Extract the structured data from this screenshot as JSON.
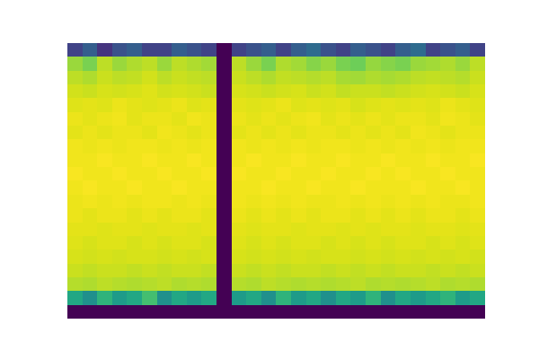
{
  "chart_data": {
    "type": "heatmap",
    "color": "viridis",
    "tick_labels": false,
    "value_range": [
      0,
      1
    ],
    "cells": [
      [
        0.2,
        0.3,
        0.15,
        0.25,
        0.3,
        0.2,
        0.2,
        0.3,
        0.25,
        0.2,
        0,
        0.2,
        0.25,
        0.3,
        0.2,
        0.3,
        0.35,
        0.25,
        0.2,
        0.3,
        0.25,
        0.2,
        0.3,
        0.35,
        0.2,
        0.25,
        0.3,
        0.2
      ],
      [
        0.85,
        0.8,
        0.9,
        0.85,
        0.88,
        0.9,
        0.85,
        0.9,
        0.88,
        0.86,
        0,
        0.9,
        0.85,
        0.8,
        0.88,
        0.86,
        0.82,
        0.85,
        0.8,
        0.78,
        0.84,
        0.82,
        0.8,
        0.85,
        0.86,
        0.88,
        0.85,
        0.9
      ],
      [
        0.9,
        0.88,
        0.92,
        0.9,
        0.91,
        0.93,
        0.9,
        0.92,
        0.91,
        0.9,
        0,
        0.92,
        0.9,
        0.88,
        0.91,
        0.9,
        0.89,
        0.9,
        0.87,
        0.86,
        0.88,
        0.87,
        0.88,
        0.9,
        0.91,
        0.9,
        0.89,
        0.92
      ],
      [
        0.93,
        0.92,
        0.94,
        0.93,
        0.94,
        0.95,
        0.93,
        0.94,
        0.93,
        0.92,
        0,
        0.94,
        0.93,
        0.92,
        0.93,
        0.94,
        0.92,
        0.93,
        0.91,
        0.92,
        0.92,
        0.91,
        0.92,
        0.93,
        0.94,
        0.93,
        0.92,
        0.94
      ],
      [
        0.95,
        0.96,
        0.95,
        0.97,
        0.96,
        0.95,
        0.96,
        0.97,
        0.95,
        0.96,
        0,
        0.96,
        0.95,
        0.96,
        0.97,
        0.95,
        0.96,
        0.95,
        0.96,
        0.94,
        0.95,
        0.96,
        0.95,
        0.96,
        0.95,
        0.97,
        0.96,
        0.95
      ],
      [
        0.97,
        0.96,
        0.97,
        0.98,
        0.96,
        0.97,
        0.97,
        0.96,
        0.98,
        0.97,
        0,
        0.97,
        0.96,
        0.97,
        0.96,
        0.97,
        0.98,
        0.96,
        0.97,
        0.96,
        0.97,
        0.96,
        0.97,
        0.97,
        0.96,
        0.98,
        0.97,
        0.96
      ],
      [
        0.96,
        0.97,
        0.96,
        0.97,
        0.97,
        0.96,
        0.98,
        0.97,
        0.96,
        0.97,
        0,
        0.96,
        0.97,
        0.96,
        0.97,
        0.96,
        0.97,
        0.97,
        0.96,
        0.97,
        0.96,
        0.97,
        0.96,
        0.98,
        0.97,
        0.96,
        0.97,
        0.97
      ],
      [
        0.98,
        0.97,
        0.98,
        0.97,
        0.98,
        0.98,
        0.97,
        0.98,
        0.97,
        0.98,
        0,
        0.98,
        0.97,
        0.98,
        0.97,
        0.98,
        0.97,
        0.98,
        0.98,
        0.97,
        0.98,
        0.97,
        0.98,
        0.97,
        0.98,
        0.97,
        0.98,
        0.98
      ],
      [
        0.98,
        0.98,
        0.99,
        0.98,
        0.98,
        0.99,
        0.98,
        0.98,
        0.99,
        0.98,
        0,
        0.98,
        0.99,
        0.98,
        0.98,
        0.99,
        0.98,
        0.98,
        0.99,
        0.98,
        0.98,
        0.99,
        0.98,
        0.98,
        0.99,
        0.98,
        0.98,
        0.99
      ],
      [
        0.99,
        0.98,
        0.98,
        0.99,
        0.98,
        0.98,
        0.99,
        0.98,
        0.98,
        0.99,
        0,
        0.99,
        0.98,
        0.98,
        0.99,
        0.98,
        0.98,
        0.99,
        0.98,
        0.98,
        0.99,
        0.98,
        0.99,
        0.98,
        0.98,
        0.99,
        0.98,
        0.98
      ],
      [
        0.98,
        0.99,
        0.98,
        0.98,
        0.99,
        0.98,
        0.98,
        0.99,
        0.98,
        0.98,
        0,
        0.98,
        0.98,
        0.99,
        0.98,
        0.98,
        0.99,
        0.98,
        0.98,
        0.99,
        0.98,
        0.98,
        0.98,
        0.99,
        0.98,
        0.98,
        0.99,
        0.98
      ],
      [
        0.97,
        0.98,
        0.97,
        0.98,
        0.97,
        0.98,
        0.98,
        0.97,
        0.98,
        0.97,
        0,
        0.98,
        0.97,
        0.98,
        0.97,
        0.98,
        0.97,
        0.97,
        0.98,
        0.97,
        0.98,
        0.97,
        0.98,
        0.97,
        0.98,
        0.97,
        0.97,
        0.98
      ],
      [
        0.97,
        0.96,
        0.97,
        0.97,
        0.96,
        0.97,
        0.96,
        0.97,
        0.97,
        0.96,
        0,
        0.97,
        0.96,
        0.97,
        0.96,
        0.97,
        0.96,
        0.97,
        0.97,
        0.96,
        0.97,
        0.96,
        0.97,
        0.96,
        0.97,
        0.97,
        0.96,
        0.97
      ],
      [
        0.96,
        0.96,
        0.95,
        0.96,
        0.96,
        0.95,
        0.96,
        0.96,
        0.95,
        0.96,
        0,
        0.96,
        0.95,
        0.96,
        0.96,
        0.95,
        0.96,
        0.96,
        0.95,
        0.96,
        0.95,
        0.96,
        0.96,
        0.95,
        0.96,
        0.96,
        0.95,
        0.96
      ],
      [
        0.95,
        0.94,
        0.95,
        0.95,
        0.94,
        0.95,
        0.94,
        0.95,
        0.95,
        0.94,
        0,
        0.95,
        0.94,
        0.95,
        0.94,
        0.95,
        0.95,
        0.94,
        0.95,
        0.94,
        0.95,
        0.94,
        0.95,
        0.95,
        0.94,
        0.95,
        0.94,
        0.95
      ],
      [
        0.94,
        0.93,
        0.94,
        0.93,
        0.94,
        0.94,
        0.93,
        0.94,
        0.93,
        0.94,
        0,
        0.94,
        0.93,
        0.94,
        0.93,
        0.94,
        0.93,
        0.94,
        0.94,
        0.93,
        0.94,
        0.93,
        0.94,
        0.93,
        0.94,
        0.93,
        0.94,
        0.93
      ],
      [
        0.92,
        0.91,
        0.92,
        0.92,
        0.91,
        0.92,
        0.91,
        0.92,
        0.92,
        0.91,
        0,
        0.92,
        0.91,
        0.92,
        0.91,
        0.92,
        0.92,
        0.91,
        0.92,
        0.91,
        0.92,
        0.91,
        0.92,
        0.92,
        0.91,
        0.92,
        0.91,
        0.92
      ],
      [
        0.89,
        0.88,
        0.9,
        0.89,
        0.88,
        0.89,
        0.9,
        0.88,
        0.89,
        0.88,
        0,
        0.89,
        0.88,
        0.9,
        0.89,
        0.88,
        0.89,
        0.88,
        0.89,
        0.9,
        0.88,
        0.89,
        0.88,
        0.89,
        0.9,
        0.88,
        0.89,
        0.88
      ],
      [
        0.6,
        0.5,
        0.65,
        0.55,
        0.6,
        0.7,
        0.5,
        0.6,
        0.55,
        0.6,
        0,
        0.55,
        0.6,
        0.5,
        0.65,
        0.55,
        0.6,
        0.5,
        0.6,
        0.55,
        0.65,
        0.5,
        0.6,
        0.55,
        0.6,
        0.65,
        0.55,
        0.6
      ],
      [
        0,
        0,
        0,
        0,
        0,
        0,
        0,
        0,
        0,
        0,
        0,
        0,
        0,
        0,
        0,
        0,
        0,
        0,
        0,
        0,
        0,
        0,
        0,
        0,
        0,
        0,
        0,
        0
      ]
    ]
  }
}
